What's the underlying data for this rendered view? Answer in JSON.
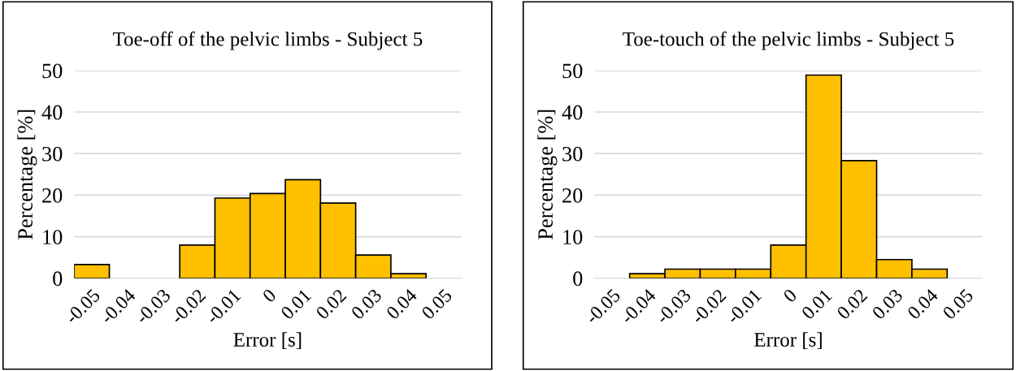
{
  "chart_data": [
    {
      "type": "bar",
      "title": "Toe-off of the pelvic limbs - Subject 5",
      "xlabel": "Error [s]",
      "ylabel": "Percentage [%]",
      "categories": [
        "-0.05",
        "-0.04",
        "-0.03",
        "-0.02",
        "-0.01",
        "0",
        "0.01",
        "0.02",
        "0.03",
        "0.04",
        "0.05"
      ],
      "values": [
        3.3,
        0,
        0,
        8,
        19.3,
        20.4,
        23.7,
        18.1,
        5.6,
        1.1,
        0
      ],
      "color": "#ffc000",
      "ylim": [
        0,
        50
      ],
      "yticks": [
        0,
        10,
        20,
        30,
        40,
        50
      ],
      "grid": "y",
      "legend": false
    },
    {
      "type": "bar",
      "title": "Toe-touch of the pelvic limbs - Subject 5",
      "xlabel": "Error [s]",
      "ylabel": "Percentage [%]",
      "categories": [
        "-0.05",
        "-0.04",
        "-0.03",
        "-0.02",
        "-0.01",
        "0",
        "0.01",
        "0.02",
        "0.03",
        "0.04",
        "0.05"
      ],
      "values": [
        0,
        1.1,
        2.2,
        2.2,
        2.2,
        8,
        48.9,
        28.3,
        4.5,
        2.2,
        0
      ],
      "color": "#ffc000",
      "ylim": [
        0,
        50
      ],
      "yticks": [
        0,
        10,
        20,
        30,
        40,
        50
      ],
      "grid": "y",
      "legend": false
    }
  ]
}
